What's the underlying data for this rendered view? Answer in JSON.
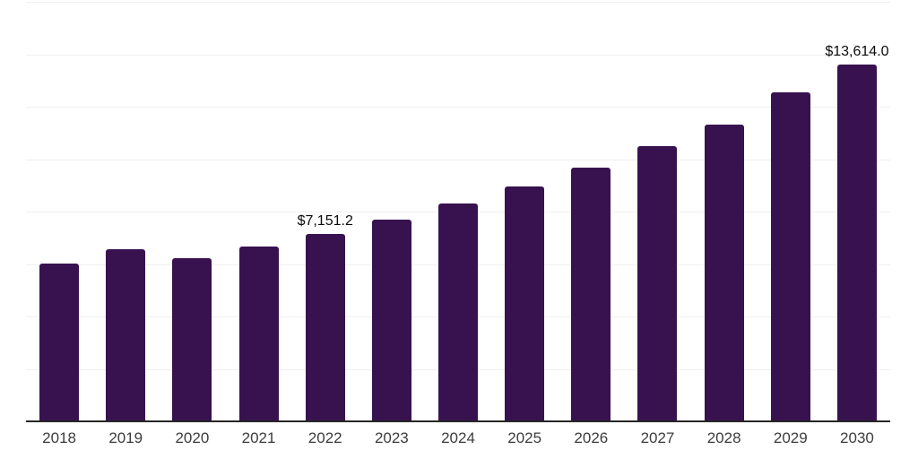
{
  "chart_data": {
    "type": "bar",
    "title": "",
    "xlabel": "",
    "ylabel": "",
    "categories": [
      "2018",
      "2019",
      "2020",
      "2021",
      "2022",
      "2023",
      "2024",
      "2025",
      "2026",
      "2027",
      "2028",
      "2029",
      "2030"
    ],
    "values": [
      6010,
      6550,
      6210,
      6670,
      7151.2,
      7700,
      8320,
      8960,
      9690,
      10490,
      11320,
      12550,
      13614
    ],
    "data_labels": [
      "",
      "",
      "",
      "",
      "$7,151.2",
      "",
      "",
      "",
      "",
      "",
      "",
      "",
      "$13,614.0"
    ],
    "ylim": [
      0,
      16000
    ],
    "gridline_interval": 2000,
    "grid": "horizontal-only",
    "legend": "none",
    "y_axis_tick_labels": "hidden"
  },
  "colors": {
    "bar": "#38124F",
    "gridline": "#f0f0f0",
    "axis_line": "#262626",
    "tick_label": "#3d3d3d",
    "data_label": "#0a0a0a",
    "background": "#ffffff"
  }
}
